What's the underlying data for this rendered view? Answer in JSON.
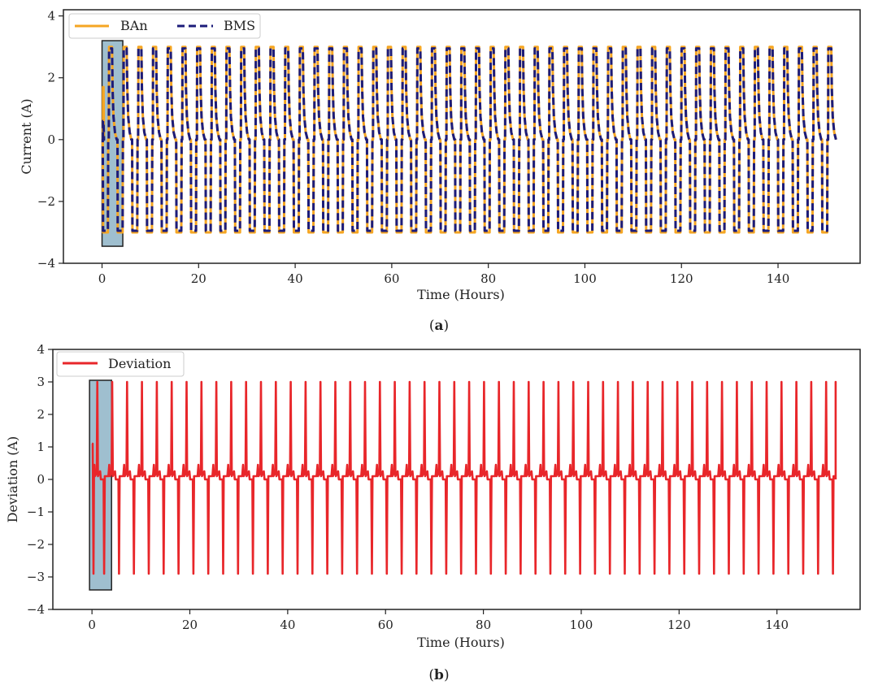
{
  "chart_data": [
    {
      "type": "line",
      "panel_label": "a",
      "xlabel": "Time (Hours)",
      "ylabel": "Current (A)",
      "xlim": [
        -8,
        157
      ],
      "ylim": [
        -4,
        4.2
      ],
      "xticks": [
        0,
        20,
        40,
        60,
        80,
        100,
        120,
        140
      ],
      "yticks": [
        -4,
        -2,
        0,
        2,
        4
      ],
      "grid": false,
      "legend_position": "top-left",
      "cycle_count": 50,
      "time_end": 152,
      "series": [
        {
          "name": "BAn",
          "color": "#f5a623",
          "dash": "solid",
          "charge_level": 3.0,
          "discharge_level": -3.0,
          "initial_spike": 1.7
        },
        {
          "name": "BMS",
          "color": "#1c1c7a",
          "dash": "dashed",
          "charge_level": 2.95,
          "discharge_level": -2.95,
          "initial_spike": 0.6
        }
      ],
      "highlight_region": {
        "x": [
          0,
          4.3
        ],
        "y": [
          -3.45,
          3.2
        ],
        "color": "#7fa9bf"
      }
    },
    {
      "type": "line",
      "panel_label": "b",
      "xlabel": "Time (Hours)",
      "ylabel": "Deviation (A)",
      "xlim": [
        -8,
        157
      ],
      "ylim": [
        -4,
        4
      ],
      "xticks": [
        0,
        20,
        40,
        60,
        80,
        100,
        120,
        140
      ],
      "yticks": [
        -4,
        -3,
        -2,
        -1,
        0,
        1,
        2,
        3,
        4
      ],
      "grid": false,
      "legend_position": "top-left",
      "cycle_count": 50,
      "time_end": 152,
      "series": [
        {
          "name": "Deviation",
          "color": "#e8262a",
          "dash": "solid",
          "spike_high": 3.0,
          "spike_low": -2.9,
          "ripple_high": 0.45,
          "baseline": 0.1,
          "initial_spike": 1.1
        }
      ],
      "highlight_region": {
        "x": [
          -0.5,
          4
        ],
        "y": [
          -3.4,
          3.05
        ],
        "color": "#7fa9bf"
      }
    }
  ]
}
